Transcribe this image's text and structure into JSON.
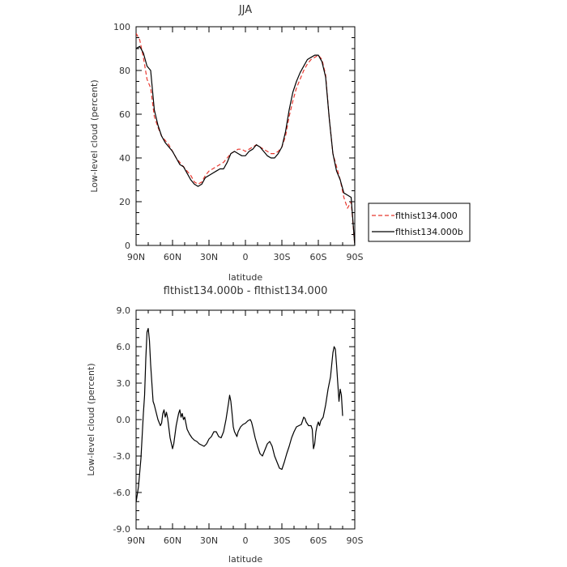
{
  "chart_data": [
    {
      "type": "line",
      "title": "JJA",
      "xlabel": "latitude",
      "ylabel": "Low-level cloud (percent)",
      "xlim": [
        90,
        -90
      ],
      "ylim": [
        0,
        100
      ],
      "x_tick_labels": [
        "90N",
        "60N",
        "30N",
        "0",
        "30S",
        "60S",
        "90S"
      ],
      "x_tick_values": [
        90,
        60,
        30,
        0,
        -30,
        -60,
        -90
      ],
      "y_tick_labels": [
        "0",
        "20",
        "40",
        "60",
        "80",
        "100"
      ],
      "y_tick_values": [
        0,
        20,
        40,
        60,
        80,
        100
      ],
      "legend_position": "right",
      "series": [
        {
          "name": "flthist134.000",
          "color": "#e8382f",
          "dash": "dashed",
          "points": [
            [
              90,
              97
            ],
            [
              87,
              94
            ],
            [
              84,
              86
            ],
            [
              81,
              76
            ],
            [
              78,
              72
            ],
            [
              75,
              59
            ],
            [
              72,
              54
            ],
            [
              69,
              50
            ],
            [
              66,
              48
            ],
            [
              63,
              46
            ],
            [
              60,
              43
            ],
            [
              57,
              40
            ],
            [
              54,
              38
            ],
            [
              51,
              36
            ],
            [
              48,
              34
            ],
            [
              45,
              32
            ],
            [
              42,
              29
            ],
            [
              39,
              28
            ],
            [
              36,
              29
            ],
            [
              33,
              32
            ],
            [
              30,
              34
            ],
            [
              27,
              35
            ],
            [
              24,
              36
            ],
            [
              21,
              37
            ],
            [
              18,
              38
            ],
            [
              15,
              40
            ],
            [
              12,
              42
            ],
            [
              9,
              43
            ],
            [
              6,
              44
            ],
            [
              3,
              44
            ],
            [
              0,
              43
            ],
            [
              -3,
              44
            ],
            [
              -6,
              45
            ],
            [
              -9,
              46
            ],
            [
              -12,
              45
            ],
            [
              -15,
              44
            ],
            [
              -18,
              43
            ],
            [
              -21,
              42
            ],
            [
              -24,
              42
            ],
            [
              -27,
              43
            ],
            [
              -30,
              45
            ],
            [
              -33,
              50
            ],
            [
              -36,
              59
            ],
            [
              -39,
              66
            ],
            [
              -42,
              72
            ],
            [
              -45,
              76
            ],
            [
              -48,
              80
            ],
            [
              -51,
              83
            ],
            [
              -54,
              85
            ],
            [
              -57,
              86
            ],
            [
              -60,
              87
            ],
            [
              -63,
              85
            ],
            [
              -66,
              78
            ],
            [
              -69,
              58
            ],
            [
              -72,
              42
            ],
            [
              -75,
              36
            ],
            [
              -78,
              30
            ],
            [
              -81,
              22
            ],
            [
              -84,
              17
            ],
            [
              -87,
              20
            ],
            [
              -90,
              0
            ]
          ]
        },
        {
          "name": "flthist134.000b",
          "color": "#000000",
          "dash": "solid",
          "points": [
            [
              90,
              90
            ],
            [
              87,
              91
            ],
            [
              84,
              88
            ],
            [
              81,
              82
            ],
            [
              78,
              80
            ],
            [
              75,
              62
            ],
            [
              72,
              55
            ],
            [
              69,
              50
            ],
            [
              66,
              47
            ],
            [
              63,
              45
            ],
            [
              60,
              43
            ],
            [
              57,
              40
            ],
            [
              54,
              37
            ],
            [
              51,
              36
            ],
            [
              48,
              33
            ],
            [
              45,
              30
            ],
            [
              42,
              28
            ],
            [
              39,
              27
            ],
            [
              36,
              28
            ],
            [
              33,
              31
            ],
            [
              30,
              32
            ],
            [
              27,
              33
            ],
            [
              24,
              34
            ],
            [
              21,
              35
            ],
            [
              18,
              35
            ],
            [
              15,
              38
            ],
            [
              12,
              42
            ],
            [
              9,
              43
            ],
            [
              6,
              42
            ],
            [
              3,
              41
            ],
            [
              0,
              41
            ],
            [
              -3,
              43
            ],
            [
              -6,
              44
            ],
            [
              -9,
              46
            ],
            [
              -12,
              45
            ],
            [
              -15,
              43
            ],
            [
              -18,
              41
            ],
            [
              -21,
              40
            ],
            [
              -24,
              40
            ],
            [
              -27,
              42
            ],
            [
              -30,
              45
            ],
            [
              -33,
              52
            ],
            [
              -36,
              62
            ],
            [
              -39,
              70
            ],
            [
              -42,
              75
            ],
            [
              -45,
              79
            ],
            [
              -48,
              82
            ],
            [
              -51,
              85
            ],
            [
              -54,
              86
            ],
            [
              -57,
              87
            ],
            [
              -60,
              87
            ],
            [
              -63,
              84
            ],
            [
              -66,
              77
            ],
            [
              -69,
              58
            ],
            [
              -72,
              42
            ],
            [
              -75,
              34
            ],
            [
              -78,
              30
            ],
            [
              -81,
              24
            ],
            [
              -84,
              23
            ],
            [
              -87,
              22
            ],
            [
              -90,
              0
            ]
          ]
        }
      ]
    },
    {
      "type": "line",
      "title": "flthist134.000b - flthist134.000",
      "xlabel": "latitude",
      "ylabel": "Low-level cloud (percent)",
      "xlim": [
        90,
        -90
      ],
      "ylim": [
        -9,
        9
      ],
      "x_tick_labels": [
        "90N",
        "60N",
        "30N",
        "0",
        "30S",
        "60S",
        "90S"
      ],
      "x_tick_values": [
        90,
        60,
        30,
        0,
        -30,
        -60,
        -90
      ],
      "y_tick_labels": [
        "-9.0",
        "-6.0",
        "-3.0",
        "0.0",
        "3.0",
        "6.0",
        "9.0"
      ],
      "y_tick_values": [
        -9,
        -6,
        -3,
        0,
        3,
        6,
        9
      ],
      "series": [
        {
          "color": "#000000",
          "points": [
            [
              90,
              -6.8
            ],
            [
              88,
              -5.5
            ],
            [
              86,
              -3.2
            ],
            [
              84,
              0.5
            ],
            [
              83,
              2.0
            ],
            [
              82,
              5.0
            ],
            [
              81,
              7.2
            ],
            [
              80,
              7.5
            ],
            [
              79,
              6.5
            ],
            [
              78,
              4.5
            ],
            [
              77,
              3.0
            ],
            [
              76,
              1.5
            ],
            [
              75,
              1.2
            ],
            [
              74,
              0.8
            ],
            [
              72,
              0.0
            ],
            [
              70,
              -0.5
            ],
            [
              69,
              -0.3
            ],
            [
              68,
              0.5
            ],
            [
              67,
              0.8
            ],
            [
              66,
              0.2
            ],
            [
              65,
              0.6
            ],
            [
              64,
              0.1
            ],
            [
              62,
              -1.5
            ],
            [
              60,
              -2.4
            ],
            [
              59,
              -2.0
            ],
            [
              57,
              -0.5
            ],
            [
              55,
              0.5
            ],
            [
              54,
              0.8
            ],
            [
              53,
              0.2
            ],
            [
              52,
              0.5
            ],
            [
              51,
              0.0
            ],
            [
              50,
              0.2
            ],
            [
              48,
              -0.8
            ],
            [
              46,
              -1.2
            ],
            [
              44,
              -1.5
            ],
            [
              42,
              -1.7
            ],
            [
              40,
              -1.8
            ],
            [
              38,
              -2.0
            ],
            [
              36,
              -2.1
            ],
            [
              34,
              -2.2
            ],
            [
              32,
              -2.0
            ],
            [
              30,
              -1.6
            ],
            [
              28,
              -1.4
            ],
            [
              26,
              -1.0
            ],
            [
              24,
              -1.0
            ],
            [
              22,
              -1.4
            ],
            [
              20,
              -1.5
            ],
            [
              18,
              -1.0
            ],
            [
              16,
              0.0
            ],
            [
              14,
              1.3
            ],
            [
              13,
              2.0
            ],
            [
              12,
              1.5
            ],
            [
              11,
              0.5
            ],
            [
              10,
              -0.6
            ],
            [
              9,
              -1.0
            ],
            [
              8,
              -1.2
            ],
            [
              7,
              -1.4
            ],
            [
              6,
              -1.0
            ],
            [
              4,
              -0.6
            ],
            [
              2,
              -0.4
            ],
            [
              0,
              -0.3
            ],
            [
              -2,
              -0.1
            ],
            [
              -4,
              0.0
            ],
            [
              -5,
              -0.2
            ],
            [
              -6,
              -0.6
            ],
            [
              -8,
              -1.5
            ],
            [
              -10,
              -2.2
            ],
            [
              -12,
              -2.8
            ],
            [
              -14,
              -3.0
            ],
            [
              -16,
              -2.5
            ],
            [
              -18,
              -2.0
            ],
            [
              -20,
              -1.8
            ],
            [
              -22,
              -2.2
            ],
            [
              -24,
              -3.0
            ],
            [
              -26,
              -3.5
            ],
            [
              -28,
              -4.0
            ],
            [
              -30,
              -4.1
            ],
            [
              -32,
              -3.5
            ],
            [
              -34,
              -2.8
            ],
            [
              -36,
              -2.2
            ],
            [
              -38,
              -1.5
            ],
            [
              -40,
              -1.0
            ],
            [
              -42,
              -0.6
            ],
            [
              -44,
              -0.5
            ],
            [
              -46,
              -0.4
            ],
            [
              -48,
              0.2
            ],
            [
              -49,
              0.1
            ],
            [
              -50,
              -0.2
            ],
            [
              -52,
              -0.5
            ],
            [
              -54,
              -0.5
            ],
            [
              -55,
              -0.8
            ],
            [
              -56,
              -2.4
            ],
            [
              -57,
              -2.0
            ],
            [
              -58,
              -1.0
            ],
            [
              -59,
              -0.5
            ],
            [
              -60,
              -0.2
            ],
            [
              -61,
              -0.5
            ],
            [
              -62,
              -0.1
            ],
            [
              -64,
              0.2
            ],
            [
              -66,
              1.2
            ],
            [
              -68,
              2.5
            ],
            [
              -70,
              3.5
            ],
            [
              -71,
              4.5
            ],
            [
              -72,
              5.5
            ],
            [
              -73,
              6.0
            ],
            [
              -74,
              5.8
            ],
            [
              -75,
              4.5
            ],
            [
              -76,
              3.0
            ],
            [
              -77,
              1.5
            ],
            [
              -78,
              2.5
            ],
            [
              -79,
              2.0
            ],
            [
              -80,
              0.3
            ]
          ]
        }
      ]
    }
  ]
}
